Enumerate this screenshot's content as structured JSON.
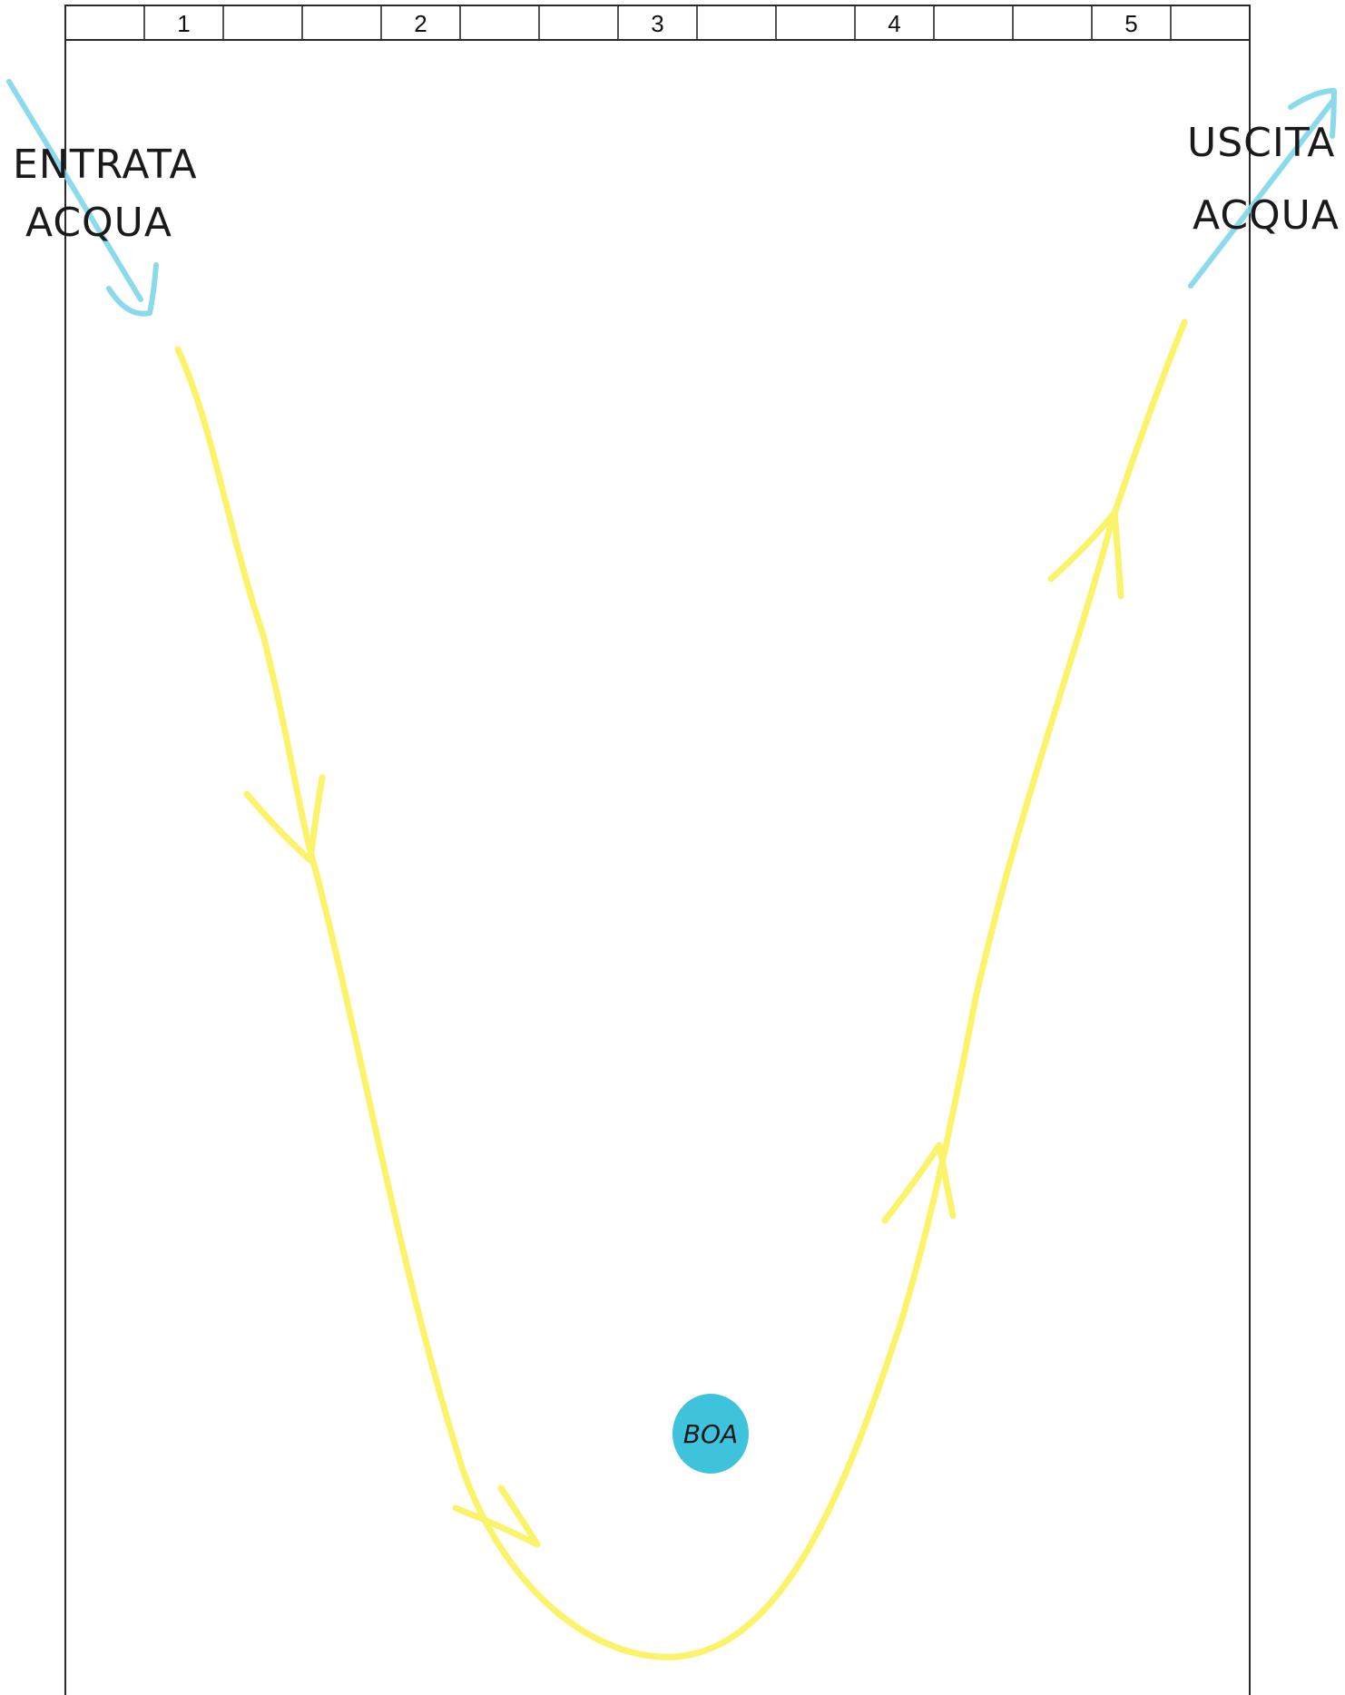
{
  "ruler": {
    "cells": 15,
    "numbers": [
      "1",
      "2",
      "3",
      "4",
      "5"
    ],
    "number_cells": [
      1,
      4,
      7,
      10,
      13
    ]
  },
  "entry": {
    "line1": "ENTRATA",
    "line2": "ACQUA"
  },
  "exit": {
    "line1": "USCITA",
    "line2": "ACQUA"
  },
  "buoy": {
    "label": "BOA"
  },
  "colors": {
    "course": "#fbf36a",
    "entry_exit_arrow": "#7fd6ea",
    "buoy": "#3fc2dc",
    "frame": "#2a2a2a"
  }
}
